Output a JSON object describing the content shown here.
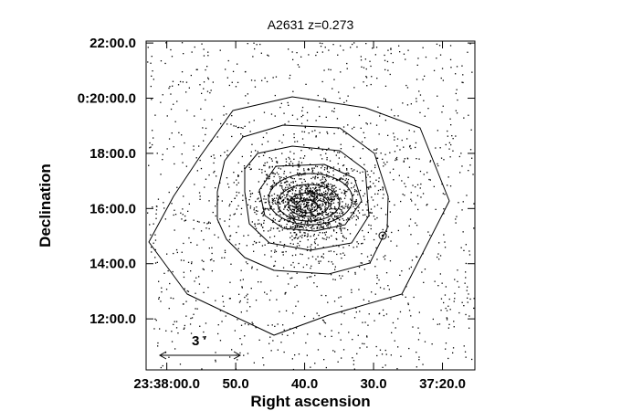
{
  "chart_data": {
    "type": "image",
    "title": "A2631 z=0.273",
    "x_label": "Right ascension",
    "y_label": "Declination",
    "scale_bar_label": "3 ′",
    "xlim": [
      85083,
      85035.3
    ],
    "xticks": [
      {
        "value": 85080,
        "label": "23:38:00.0"
      },
      {
        "value": 85070,
        "label": "50.0"
      },
      {
        "value": 85060,
        "label": "40.0"
      },
      {
        "value": 85050,
        "label": "30.0"
      },
      {
        "value": 85040,
        "label": "37:20.0"
      }
    ],
    "ylim": [
      10.15,
      22.07
    ],
    "yticks": [
      {
        "value": 22,
        "label": "22:00.0"
      },
      {
        "value": 20,
        "label": "0:20:00.0"
      },
      {
        "value": 18,
        "label": "18:00.0"
      },
      {
        "value": 16,
        "label": "16:00.0"
      },
      {
        "value": 14,
        "label": "14:00.0"
      },
      {
        "value": 12,
        "label": "12:00.0"
      }
    ]
  }
}
